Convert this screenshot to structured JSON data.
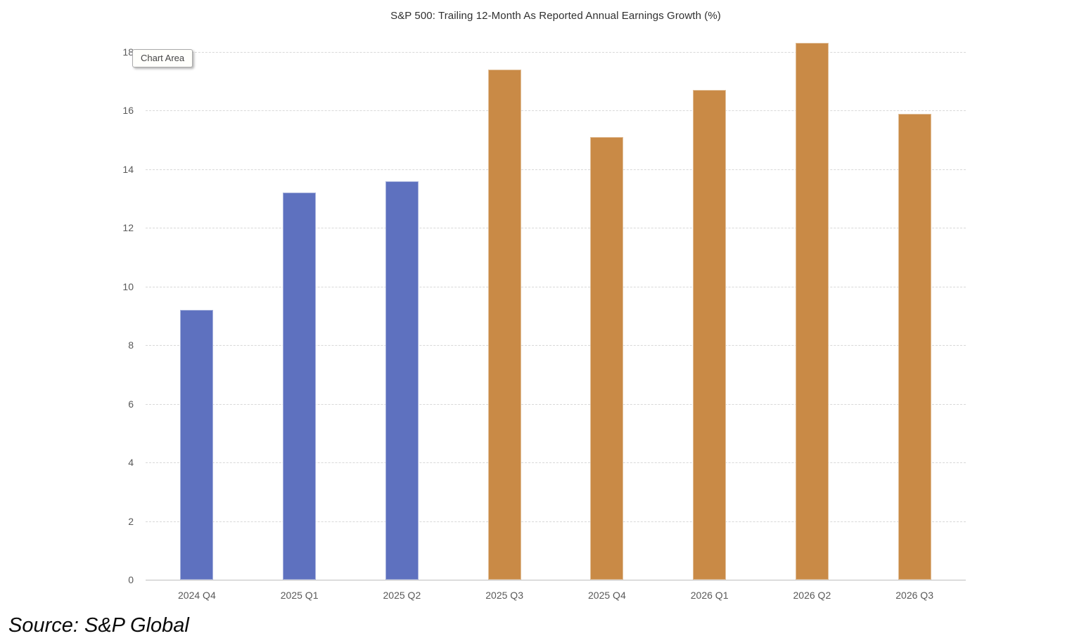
{
  "title": "S&P 500: Trailing 12-Month As Reported Annual Earnings Growth (%)",
  "tooltip": {
    "label": "Chart Area"
  },
  "source": "Source: S&P Global",
  "colors": {
    "reported_bar": "#5e71bf",
    "estimate_bar": "#c98a46",
    "gridline": "#d8d8d8",
    "axis_line": "#bfbfbf",
    "tick_text": "#595959"
  },
  "chart_data": {
    "type": "bar",
    "title": "S&P 500: Trailing 12-Month As Reported Annual Earnings Growth (%)",
    "categories": [
      "2024 Q4",
      "2025 Q1",
      "2025 Q2",
      "2025 Q3",
      "2025 Q4",
      "2026 Q1",
      "2026 Q2",
      "2026 Q3"
    ],
    "values": [
      9.2,
      13.2,
      13.6,
      17.4,
      15.1,
      16.7,
      18.3,
      15.9
    ],
    "bar_colors": [
      "#5e71bf",
      "#5e71bf",
      "#5e71bf",
      "#c98a46",
      "#c98a46",
      "#c98a46",
      "#c98a46",
      "#c98a46"
    ],
    "xlabel": "",
    "ylabel": "",
    "ylim": [
      0,
      18
    ],
    "ytick_step": 2,
    "grid": true,
    "grid_style": "dashed",
    "legend": false
  }
}
